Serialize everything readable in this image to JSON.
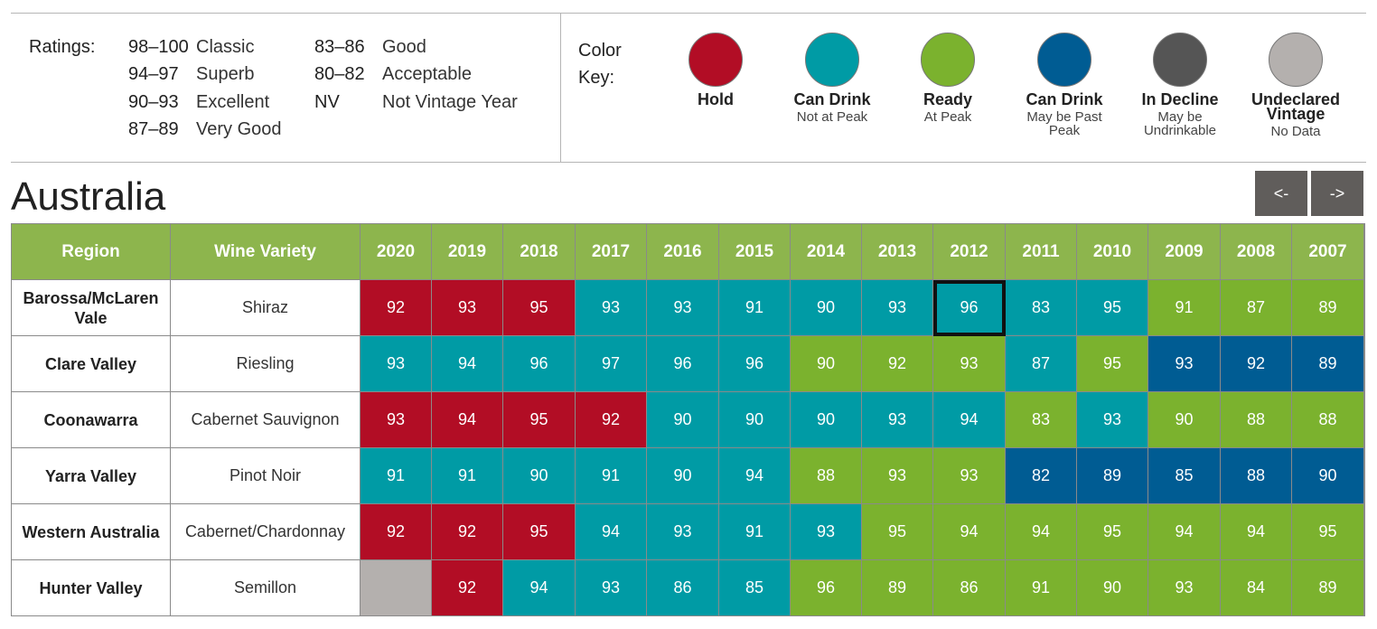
{
  "ratings": {
    "label": "Ratings:",
    "scale": [
      {
        "range": "98–100",
        "desc": "Classic"
      },
      {
        "range": "94–97",
        "desc": "Superb"
      },
      {
        "range": "90–93",
        "desc": "Excellent"
      },
      {
        "range": "87–89",
        "desc": "Very Good"
      },
      {
        "range": "83–86",
        "desc": "Good"
      },
      {
        "range": "80–82",
        "desc": "Acceptable"
      },
      {
        "range": "NV",
        "desc": "Not Vintage Year"
      }
    ]
  },
  "color_key": {
    "label_line1": "Color",
    "label_line2": "Key:",
    "items": [
      {
        "title": "Hold",
        "sub": "",
        "color": "#b20d25",
        "status": "hold"
      },
      {
        "title": "Can Drink",
        "sub": "Not at Peak",
        "color": "#009ba5",
        "status": "drink"
      },
      {
        "title": "Ready",
        "sub": "At Peak",
        "color": "#7bb22e",
        "status": "ready"
      },
      {
        "title": "Can Drink",
        "sub": "May be Past Peak",
        "color": "#005c93",
        "status": "past"
      },
      {
        "title": "In Decline",
        "sub": "May be Undrinkable",
        "color": "#555555",
        "status": "decline"
      },
      {
        "title": "Undeclared Vintage",
        "sub": "No Data",
        "color": "#b4b0ae",
        "status": "undeclared"
      }
    ]
  },
  "country": "Australia",
  "nav": {
    "prev_label": "<-",
    "next_label": "->"
  },
  "table": {
    "headers": {
      "region": "Region",
      "variety": "Wine Variety"
    },
    "years": [
      "2020",
      "2019",
      "2018",
      "2017",
      "2016",
      "2015",
      "2014",
      "2013",
      "2012",
      "2011",
      "2010",
      "2009",
      "2008",
      "2007"
    ],
    "rows": [
      {
        "region": "Barossa/McLaren Vale",
        "variety": "Shiraz",
        "cells": [
          {
            "score": "92",
            "status": "hold"
          },
          {
            "score": "93",
            "status": "hold"
          },
          {
            "score": "95",
            "status": "hold"
          },
          {
            "score": "93",
            "status": "drink"
          },
          {
            "score": "93",
            "status": "drink"
          },
          {
            "score": "91",
            "status": "drink"
          },
          {
            "score": "90",
            "status": "drink"
          },
          {
            "score": "93",
            "status": "drink"
          },
          {
            "score": "96",
            "status": "drink",
            "selected": true
          },
          {
            "score": "83",
            "status": "drink"
          },
          {
            "score": "95",
            "status": "drink"
          },
          {
            "score": "91",
            "status": "ready"
          },
          {
            "score": "87",
            "status": "ready"
          },
          {
            "score": "89",
            "status": "ready"
          }
        ]
      },
      {
        "region": "Clare Valley",
        "variety": "Riesling",
        "cells": [
          {
            "score": "93",
            "status": "drink"
          },
          {
            "score": "94",
            "status": "drink"
          },
          {
            "score": "96",
            "status": "drink"
          },
          {
            "score": "97",
            "status": "drink"
          },
          {
            "score": "96",
            "status": "drink"
          },
          {
            "score": "96",
            "status": "drink"
          },
          {
            "score": "90",
            "status": "ready"
          },
          {
            "score": "92",
            "status": "ready"
          },
          {
            "score": "93",
            "status": "ready"
          },
          {
            "score": "87",
            "status": "drink"
          },
          {
            "score": "95",
            "status": "ready"
          },
          {
            "score": "93",
            "status": "past"
          },
          {
            "score": "92",
            "status": "past"
          },
          {
            "score": "89",
            "status": "past"
          }
        ]
      },
      {
        "region": "Coonawarra",
        "variety": "Cabernet Sauvignon",
        "cells": [
          {
            "score": "93",
            "status": "hold"
          },
          {
            "score": "94",
            "status": "hold"
          },
          {
            "score": "95",
            "status": "hold"
          },
          {
            "score": "92",
            "status": "hold"
          },
          {
            "score": "90",
            "status": "drink"
          },
          {
            "score": "90",
            "status": "drink"
          },
          {
            "score": "90",
            "status": "drink"
          },
          {
            "score": "93",
            "status": "drink"
          },
          {
            "score": "94",
            "status": "drink"
          },
          {
            "score": "83",
            "status": "ready"
          },
          {
            "score": "93",
            "status": "drink"
          },
          {
            "score": "90",
            "status": "ready"
          },
          {
            "score": "88",
            "status": "ready"
          },
          {
            "score": "88",
            "status": "ready"
          }
        ]
      },
      {
        "region": "Yarra Valley",
        "variety": "Pinot Noir",
        "cells": [
          {
            "score": "91",
            "status": "drink"
          },
          {
            "score": "91",
            "status": "drink"
          },
          {
            "score": "90",
            "status": "drink"
          },
          {
            "score": "91",
            "status": "drink"
          },
          {
            "score": "90",
            "status": "drink"
          },
          {
            "score": "94",
            "status": "drink"
          },
          {
            "score": "88",
            "status": "ready"
          },
          {
            "score": "93",
            "status": "ready"
          },
          {
            "score": "93",
            "status": "ready"
          },
          {
            "score": "82",
            "status": "past"
          },
          {
            "score": "89",
            "status": "past"
          },
          {
            "score": "85",
            "status": "past"
          },
          {
            "score": "88",
            "status": "past"
          },
          {
            "score": "90",
            "status": "past"
          }
        ]
      },
      {
        "region": "Western Australia",
        "variety": "Cabernet/Chardonnay",
        "cells": [
          {
            "score": "92",
            "status": "hold"
          },
          {
            "score": "92",
            "status": "hold"
          },
          {
            "score": "95",
            "status": "hold"
          },
          {
            "score": "94",
            "status": "drink"
          },
          {
            "score": "93",
            "status": "drink"
          },
          {
            "score": "91",
            "status": "drink"
          },
          {
            "score": "93",
            "status": "drink"
          },
          {
            "score": "95",
            "status": "ready"
          },
          {
            "score": "94",
            "status": "ready"
          },
          {
            "score": "94",
            "status": "ready"
          },
          {
            "score": "95",
            "status": "ready"
          },
          {
            "score": "94",
            "status": "ready"
          },
          {
            "score": "94",
            "status": "ready"
          },
          {
            "score": "95",
            "status": "ready"
          }
        ]
      },
      {
        "region": "Hunter Valley",
        "variety": "Semillon",
        "cells": [
          {
            "score": "",
            "status": "undeclared"
          },
          {
            "score": "92",
            "status": "hold"
          },
          {
            "score": "94",
            "status": "drink"
          },
          {
            "score": "93",
            "status": "drink"
          },
          {
            "score": "86",
            "status": "drink"
          },
          {
            "score": "85",
            "status": "drink"
          },
          {
            "score": "96",
            "status": "ready"
          },
          {
            "score": "89",
            "status": "ready"
          },
          {
            "score": "86",
            "status": "ready"
          },
          {
            "score": "91",
            "status": "ready"
          },
          {
            "score": "90",
            "status": "ready"
          },
          {
            "score": "93",
            "status": "ready"
          },
          {
            "score": "84",
            "status": "ready"
          },
          {
            "score": "89",
            "status": "ready"
          }
        ]
      }
    ]
  }
}
